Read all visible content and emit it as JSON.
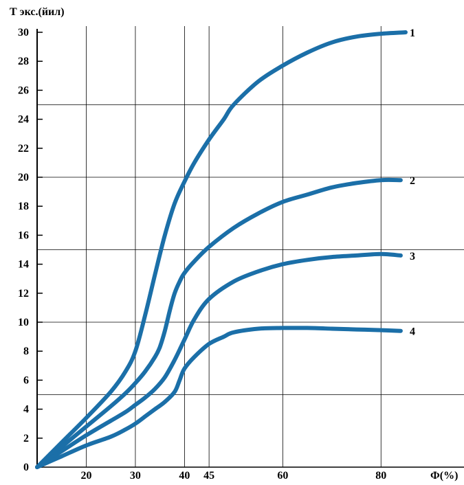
{
  "chart_data": {
    "type": "line",
    "ylabel": "Т экс.(йил)",
    "xlabel": "Ф(%)",
    "xlim": [
      10,
      90
    ],
    "ylim": [
      0,
      31
    ],
    "x_ticks": [
      20,
      30,
      40,
      45,
      60,
      80
    ],
    "y_ticks": [
      0,
      2,
      4,
      6,
      8,
      10,
      12,
      14,
      16,
      18,
      20,
      22,
      24,
      26,
      28,
      30
    ],
    "grid": true,
    "line_color": "#1b6fa8",
    "series": [
      {
        "name": "1",
        "x": [
          10,
          15,
          20,
          25,
          28,
          30,
          32,
          34,
          36,
          38,
          40,
          42,
          45,
          48,
          50,
          55,
          60,
          65,
          70,
          75,
          80,
          85
        ],
        "values": [
          0,
          1.7,
          3.4,
          5.2,
          6.6,
          8.0,
          10.5,
          13.3,
          16.0,
          18.2,
          19.7,
          21.0,
          22.6,
          24.0,
          25.0,
          26.6,
          27.7,
          28.6,
          29.3,
          29.7,
          29.9,
          30.0
        ]
      },
      {
        "name": "2",
        "x": [
          10,
          15,
          20,
          25,
          28,
          30,
          32,
          34,
          35,
          36,
          37,
          38,
          39,
          40,
          42,
          45,
          50,
          55,
          60,
          65,
          70,
          75,
          80,
          84
        ],
        "values": [
          0,
          1.4,
          2.8,
          4.2,
          5.1,
          5.8,
          6.6,
          7.6,
          8.3,
          9.4,
          10.8,
          12.0,
          12.8,
          13.4,
          14.2,
          15.2,
          16.5,
          17.5,
          18.3,
          18.8,
          19.3,
          19.6,
          19.8,
          19.8
        ]
      },
      {
        "name": "3",
        "x": [
          10,
          15,
          20,
          25,
          28,
          30,
          32,
          34,
          36,
          38,
          40,
          42,
          45,
          50,
          55,
          60,
          65,
          70,
          75,
          80,
          84
        ],
        "values": [
          0,
          1.1,
          2.2,
          3.2,
          3.8,
          4.3,
          4.8,
          5.4,
          6.2,
          7.4,
          8.8,
          10.2,
          11.6,
          12.8,
          13.5,
          14.0,
          14.3,
          14.5,
          14.6,
          14.7,
          14.6
        ]
      },
      {
        "name": "4",
        "x": [
          10,
          15,
          20,
          25,
          28,
          30,
          32,
          34,
          36,
          38,
          39,
          40,
          42,
          45,
          48,
          50,
          55,
          60,
          65,
          70,
          75,
          80,
          84
        ],
        "values": [
          0,
          0.75,
          1.5,
          2.1,
          2.6,
          3.0,
          3.5,
          4.0,
          4.5,
          5.2,
          6.0,
          6.8,
          7.6,
          8.5,
          9.0,
          9.3,
          9.55,
          9.6,
          9.6,
          9.55,
          9.5,
          9.45,
          9.4
        ]
      }
    ]
  }
}
